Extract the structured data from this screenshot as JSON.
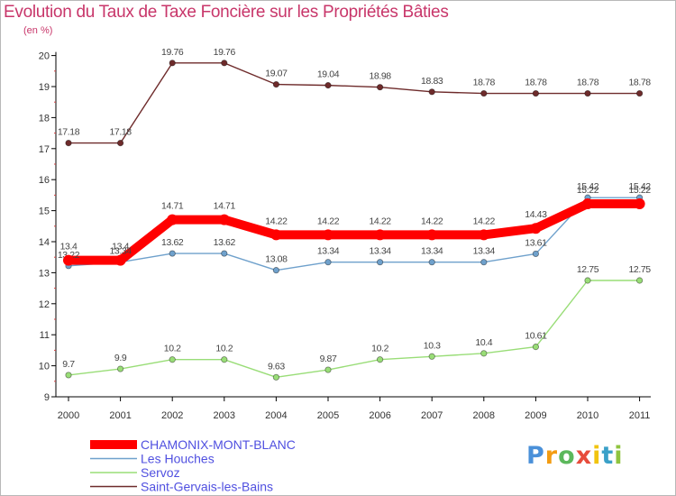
{
  "chart_data": {
    "type": "line",
    "title": "Evolution du Taux de Taxe Foncière sur les Propriétés Bâties",
    "ylabel": "(en %)",
    "xlabel": "",
    "ylim": [
      9,
      20
    ],
    "yticks": [
      9,
      10,
      11,
      12,
      13,
      14,
      15,
      16,
      17,
      18,
      19,
      20
    ],
    "categories": [
      "2000",
      "2001",
      "2002",
      "2003",
      "2004",
      "2005",
      "2006",
      "2007",
      "2008",
      "2009",
      "2010",
      "2011"
    ],
    "series": [
      {
        "name": "Saint-Gervais-les-Bains",
        "color": "#6e2b2b",
        "values": [
          17.18,
          17.18,
          19.76,
          19.76,
          19.07,
          19.04,
          18.98,
          18.83,
          18.78,
          18.78,
          18.78,
          18.78
        ],
        "labels": [
          "17.18",
          "17.18",
          "19.76",
          "19.76",
          "19.07",
          "19.04",
          "18.98",
          "18.83",
          "18.78",
          "18.78",
          "18.78",
          "18.78"
        ]
      },
      {
        "name": "Les Houches",
        "color": "#6fa1cc",
        "values": [
          13.22,
          13.34,
          13.62,
          13.62,
          13.08,
          13.34,
          13.34,
          13.34,
          13.34,
          13.61,
          15.42,
          15.42
        ],
        "labels": [
          "13.22",
          "13.34",
          "13.62",
          "13.62",
          "13.08",
          "13.34",
          "13.34",
          "13.34",
          "13.34",
          "13.61",
          "15.42",
          "15.42"
        ]
      },
      {
        "name": "CHAMONIX-MONT-BLANC",
        "color": "#ff0000",
        "values": [
          13.4,
          13.4,
          14.71,
          14.71,
          14.22,
          14.22,
          14.22,
          14.22,
          14.22,
          14.43,
          15.22,
          15.22
        ],
        "labels": [
          "13.4",
          "13.4",
          "14.71",
          "14.71",
          "14.22",
          "14.22",
          "14.22",
          "14.22",
          "14.22",
          "14.43",
          "15.22",
          "15.22"
        ]
      },
      {
        "name": "Servoz",
        "color": "#99dd77",
        "values": [
          9.7,
          9.9,
          10.2,
          10.2,
          9.63,
          9.87,
          10.2,
          10.3,
          10.4,
          10.61,
          12.75,
          12.75
        ],
        "labels": [
          "9.7",
          "9.9",
          "10.2",
          "10.2",
          "9.63",
          "9.87",
          "10.2",
          "10.3",
          "10.4",
          "10.61",
          "12.75",
          "12.75"
        ]
      }
    ],
    "legend": [
      "CHAMONIX-MONT-BLANC",
      "Les Houches",
      "Servoz",
      "Saint-Gervais-les-Bains"
    ],
    "legend_position": "bottom-left",
    "grid": false
  },
  "branding": {
    "logo_text": "Proxiti"
  },
  "colors": {
    "title": "#c8366a",
    "legend_text": "#5050e0"
  }
}
